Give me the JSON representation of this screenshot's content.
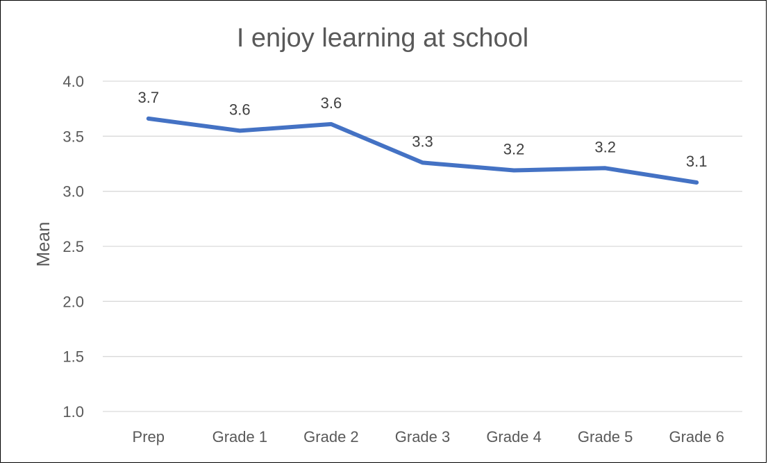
{
  "chart_data": {
    "type": "line",
    "title": "I enjoy learning at school",
    "xlabel": "",
    "ylabel": "Mean",
    "categories": [
      "Prep",
      "Grade 1",
      "Grade 2",
      "Grade 3",
      "Grade 4",
      "Grade 5",
      "Grade 6"
    ],
    "series": [
      {
        "values": [
          3.66,
          3.55,
          3.61,
          3.26,
          3.19,
          3.21,
          3.08
        ],
        "labels": [
          "3.7",
          "3.6",
          "3.6",
          "3.3",
          "3.2",
          "3.2",
          "3.1"
        ],
        "color": "#4472c4"
      }
    ],
    "ylim": [
      1.0,
      4.0
    ],
    "yticks": [
      "1.0",
      "1.5",
      "2.0",
      "2.5",
      "3.0",
      "3.5",
      "4.0"
    ],
    "grid": true,
    "legend": "none"
  }
}
